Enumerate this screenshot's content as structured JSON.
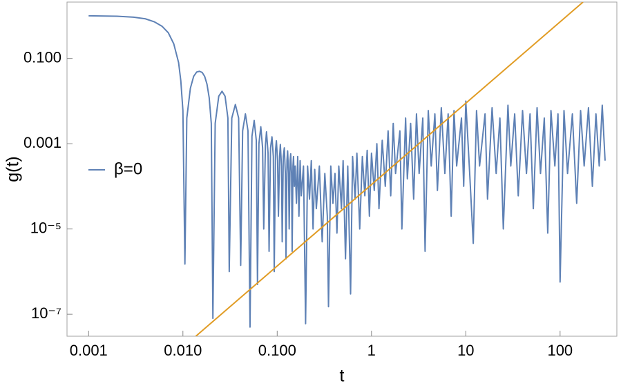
{
  "chart_data": {
    "type": "line",
    "xlabel": "t",
    "ylabel": "g(t)",
    "xscale": "log",
    "yscale": "log",
    "xlim": [
      0.00059,
      400
    ],
    "ylim": [
      3.05e-08,
      2.1
    ],
    "xticks": [
      0.001,
      {
        "value": 0.01,
        "label": "0.010"
      },
      {
        "value": 0.1,
        "label": "0.100"
      },
      1,
      10,
      100
    ],
    "yticks": [
      {
        "value": 1e-07,
        "label": "10⁻⁷"
      },
      {
        "value": 1e-05,
        "label": "10⁻⁵"
      },
      0.001,
      {
        "value": 0.1,
        "label": "0.100"
      }
    ],
    "legend": "left",
    "series": [
      {
        "name": "β=0",
        "color": "#5e81b5",
        "x": [
          0.001,
          0.002,
          0.003,
          0.004,
          0.005,
          0.006,
          0.007,
          0.008,
          0.009,
          0.0095,
          0.01,
          0.0105,
          0.011,
          0.012,
          0.013,
          0.014,
          0.015,
          0.016,
          0.017,
          0.018,
          0.019,
          0.02,
          0.0208,
          0.022,
          0.024,
          0.026,
          0.028,
          0.03,
          0.031,
          0.033,
          0.036,
          0.039,
          0.041,
          0.043,
          0.046,
          0.049,
          0.0515,
          0.054,
          0.057,
          0.06,
          0.0618,
          0.064,
          0.067,
          0.07,
          0.072,
          0.075,
          0.077,
          0.08,
          0.082,
          0.085,
          0.088,
          0.091,
          0.093,
          0.096,
          0.098,
          0.101,
          0.103,
          0.106,
          0.108,
          0.111,
          0.113,
          0.116,
          0.119,
          0.122,
          0.124,
          0.127,
          0.129,
          0.132,
          0.134,
          0.137,
          0.139,
          0.142,
          0.144,
          0.147,
          0.149,
          0.152,
          0.155,
          0.16,
          0.165,
          0.17,
          0.175,
          0.18,
          0.19,
          0.2,
          0.21,
          0.22,
          0.23,
          0.24,
          0.25,
          0.26,
          0.28,
          0.3,
          0.32,
          0.34,
          0.35,
          0.37,
          0.39,
          0.41,
          0.43,
          0.45,
          0.48,
          0.5,
          0.53,
          0.56,
          0.6,
          0.63,
          0.67,
          0.7,
          0.75,
          0.8,
          0.85,
          0.9,
          0.95,
          1.0,
          1.07,
          1.14,
          1.2,
          1.3,
          1.4,
          1.5,
          1.6,
          1.7,
          1.8,
          2.0,
          2.1,
          2.3,
          2.4,
          2.6,
          2.8,
          3.0,
          3.2,
          3.5,
          3.7,
          4.0,
          4.3,
          4.7,
          5.0,
          5.5,
          6.0,
          6.5,
          7.0,
          7.5,
          8.0,
          9.0,
          9.5,
          10,
          11,
          12,
          13,
          14,
          16,
          17,
          19,
          21,
          23,
          25,
          28,
          30,
          33,
          36,
          40,
          44,
          48,
          52,
          57,
          62,
          68,
          74,
          80,
          88,
          95,
          100,
          110,
          120,
          135,
          150,
          165,
          180,
          200,
          220,
          240,
          260,
          280,
          300
        ],
        "values": [
          1.0,
          0.98,
          0.93,
          0.85,
          0.72,
          0.57,
          0.4,
          0.22,
          0.08,
          0.03,
          0.006,
          1.5e-06,
          0.004,
          0.02,
          0.038,
          0.048,
          0.05,
          0.047,
          0.038,
          0.025,
          0.012,
          0.003,
          8e-08,
          0.003,
          0.013,
          0.017,
          0.013,
          0.004,
          1e-06,
          0.004,
          0.0083,
          0.004,
          1.4e-06,
          0.002,
          0.005,
          0.002,
          5e-08,
          0.0015,
          0.0035,
          0.0012,
          5e-07,
          0.001,
          0.0025,
          0.0008,
          1e-05,
          0.0009,
          0.0019,
          0.0006,
          3e-06,
          0.0008,
          0.00145,
          0.0005,
          1e-06,
          0.0007,
          0.00117,
          0.0004,
          2e-05,
          0.0005,
          0.00096,
          0.0003,
          5e-06,
          0.0005,
          0.0008,
          0.0002,
          2e-06,
          0.0004,
          0.00068,
          0.0002,
          1e-05,
          0.0004,
          0.00058,
          0.0002,
          3e-06,
          0.0003,
          0.0005,
          0.0001,
          0.0003,
          4e-05,
          0.0005,
          2e-05,
          0.0004,
          6e-05,
          0.0003,
          6e-08,
          0.0003,
          5e-05,
          0.0004,
          1e-05,
          0.00025,
          3e-05,
          0.0003,
          5e-06,
          0.0002,
          2e-05,
          1.5e-07,
          0.0003,
          4e-05,
          0.0002,
          8e-06,
          0.0003,
          3e-05,
          0.0004,
          2e-06,
          0.0003,
          3e-07,
          0.0005,
          5e-05,
          0.0006,
          1e-05,
          0.0005,
          6e-05,
          0.0007,
          2e-05,
          0.0006,
          8e-05,
          0.001,
          3e-05,
          0.0012,
          0.0001,
          0.002,
          6e-05,
          0.003,
          0.0002,
          0.002,
          1e-05,
          0.004,
          0.00015,
          0.003,
          5e-05,
          0.005,
          0.0002,
          0.004,
          3e-06,
          0.006,
          0.0003,
          0.005,
          8e-05,
          0.007,
          0.0002,
          0.005,
          2e-05,
          0.006,
          0.0003,
          0.004,
          0.0001,
          0.01,
          0.0002,
          4.6e-06,
          0.006,
          0.0003,
          0.005,
          5e-05,
          0.007,
          0.0002,
          0.004,
          1e-05,
          0.008,
          0.0003,
          0.005,
          6e-05,
          0.006,
          0.0002,
          0.005,
          3e-05,
          0.007,
          0.0002,
          0.004,
          8e-06,
          0.006,
          0.0003,
          0.005,
          5.7e-07,
          0.006,
          0.0002,
          0.005,
          4e-05,
          0.006,
          0.0003,
          0.007,
          0.0001,
          0.005,
          0.0003,
          0.008,
          0.0004
        ]
      },
      {
        "color": "#e19c24",
        "x": [
          0.0137,
          175
        ],
        "values": [
          3.05e-08,
          2.1
        ]
      }
    ]
  }
}
